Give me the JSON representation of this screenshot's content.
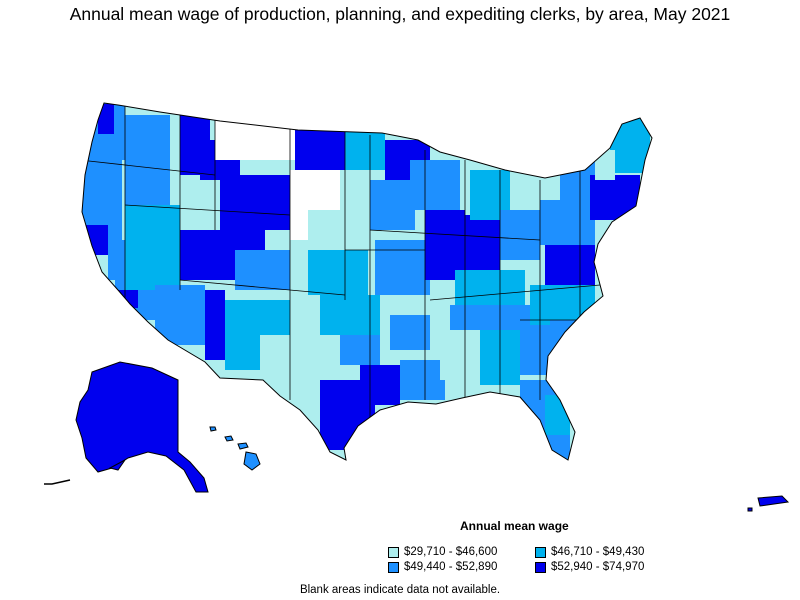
{
  "title": "Annual mean wage of production, planning, and expediting clerks, by area, May 2021",
  "legend": {
    "title": "Annual mean wage",
    "items": [
      {
        "label": "$29,710 - $46,600",
        "color": "#aeeeee"
      },
      {
        "label": "$46,710 - $49,430",
        "color": "#00b2ee"
      },
      {
        "label": "$49,440 - $52,890",
        "color": "#1e90ff"
      },
      {
        "label": "$52,940 - $74,970",
        "color": "#0000ee"
      }
    ]
  },
  "note": "Blank areas indicate data not available.",
  "colors": {
    "blank": "#ffffff",
    "border": "#000000"
  }
}
